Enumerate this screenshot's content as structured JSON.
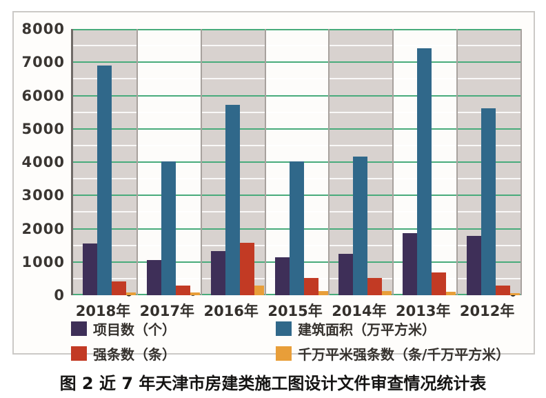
{
  "figure": {
    "caption": "图 2  近 7 年天津市房建类施工图设计文件审查情况统计表"
  },
  "chart_data": {
    "type": "bar",
    "subtype": "grouped bars with line overlay",
    "categories": [
      "2018年",
      "2017年",
      "2016年",
      "2015年",
      "2014年",
      "2013年",
      "2012年"
    ],
    "series": [
      {
        "name": "项目数（个）",
        "type": "bar",
        "color": "#3e2f58",
        "values": [
          1560,
          1060,
          1330,
          1140,
          1250,
          1870,
          1790
        ]
      },
      {
        "name": "建筑面积（万平方米）",
        "type": "bar",
        "color": "#30688a",
        "values": [
          6900,
          4030,
          5730,
          4030,
          4170,
          7430,
          5610
        ]
      },
      {
        "name": "强条数（条）",
        "type": "bar",
        "color": "#c23a24",
        "values": [
          420,
          300,
          1570,
          520,
          520,
          690,
          290
        ]
      },
      {
        "name": "千万平米强条数（条/千万平方米）",
        "type": "bar",
        "color": "#e89e39",
        "values": [
          80,
          80,
          290,
          135,
          135,
          105,
          60
        ]
      }
    ],
    "line_overlay": {
      "name": "千万平米强条数（条/千万平方米）",
      "color": "#d22420",
      "marker_color": "#1f1e1d",
      "values": [
        60,
        75,
        280,
        130,
        130,
        95,
        55
      ]
    },
    "ylim": [
      0,
      8000
    ],
    "y_major_step": 1000,
    "y_minor_step": 500,
    "y_tick_labels": [
      "8000",
      "7000",
      "6000",
      "5000",
      "4000",
      "3000",
      "2000",
      "1000",
      "0"
    ],
    "grid": true,
    "grid_color": "#48ab7b",
    "band_colors": [
      "#d8d2cf",
      "#fdfcfa"
    ],
    "legend_position": "bottom"
  }
}
